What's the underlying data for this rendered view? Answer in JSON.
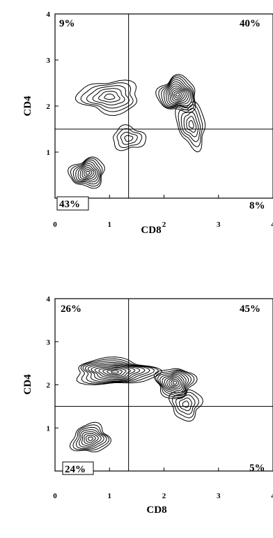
{
  "chart_data": [
    {
      "type": "contour",
      "xlabel": "CD8",
      "ylabel": "CD4",
      "xlim": [
        0,
        4
      ],
      "ylim": [
        0,
        4
      ],
      "x_ticks": [
        "0",
        "1",
        "2",
        "3",
        "4"
      ],
      "y_ticks": [
        "1",
        "2",
        "3",
        "4"
      ],
      "gate": {
        "x": 1.35,
        "y": 1.5
      },
      "quadrants": [
        {
          "position": "top-left",
          "label": "9%",
          "value": 9
        },
        {
          "position": "top-right",
          "label": "40%",
          "value": 40
        },
        {
          "position": "bottom-left",
          "label": "43%",
          "value": 43,
          "boxed": true
        },
        {
          "position": "bottom-right",
          "label": "8%",
          "value": 8
        }
      ],
      "populations": [
        {
          "cx": 0.6,
          "cy": 0.55,
          "sx": 0.33,
          "sy": 0.3,
          "rot": 35,
          "levels": 9
        },
        {
          "cx": 2.25,
          "cy": 2.25,
          "sx": 0.35,
          "sy": 0.38,
          "rot": 20,
          "levels": 11
        },
        {
          "cx": 1.0,
          "cy": 2.2,
          "sx": 0.55,
          "sy": 0.35,
          "rot": 0,
          "levels": 6
        },
        {
          "cx": 1.35,
          "cy": 1.3,
          "sx": 0.3,
          "sy": 0.25,
          "rot": 0,
          "levels": 4
        },
        {
          "cx": 2.5,
          "cy": 1.6,
          "sx": 0.25,
          "sy": 0.5,
          "rot": 10,
          "levels": 6
        }
      ]
    },
    {
      "type": "contour",
      "xlabel": "CD8",
      "ylabel": "CD4",
      "xlim": [
        0,
        4
      ],
      "ylim": [
        0,
        4
      ],
      "x_ticks": [
        "0",
        "1",
        "2",
        "3",
        "4"
      ],
      "y_ticks": [
        "1",
        "2",
        "3",
        "4"
      ],
      "gate": {
        "x": 1.35,
        "y": 1.5
      },
      "quadrants": [
        {
          "position": "top-left",
          "label": "26%",
          "value": 26
        },
        {
          "position": "top-right",
          "label": "45%",
          "value": 45
        },
        {
          "position": "bottom-left",
          "label": "24%",
          "value": 24,
          "boxed": true
        },
        {
          "position": "bottom-right",
          "label": "5%",
          "value": 5
        }
      ],
      "populations": [
        {
          "cx": 0.65,
          "cy": 0.75,
          "sx": 0.35,
          "sy": 0.32,
          "rot": 35,
          "levels": 8
        },
        {
          "cx": 1.1,
          "cy": 2.3,
          "sx": 0.75,
          "sy": 0.3,
          "rot": 0,
          "levels": 11
        },
        {
          "cx": 2.2,
          "cy": 2.05,
          "sx": 0.35,
          "sy": 0.35,
          "rot": 10,
          "levels": 10
        },
        {
          "cx": 2.4,
          "cy": 1.55,
          "sx": 0.28,
          "sy": 0.35,
          "rot": 0,
          "levels": 5
        }
      ]
    }
  ]
}
